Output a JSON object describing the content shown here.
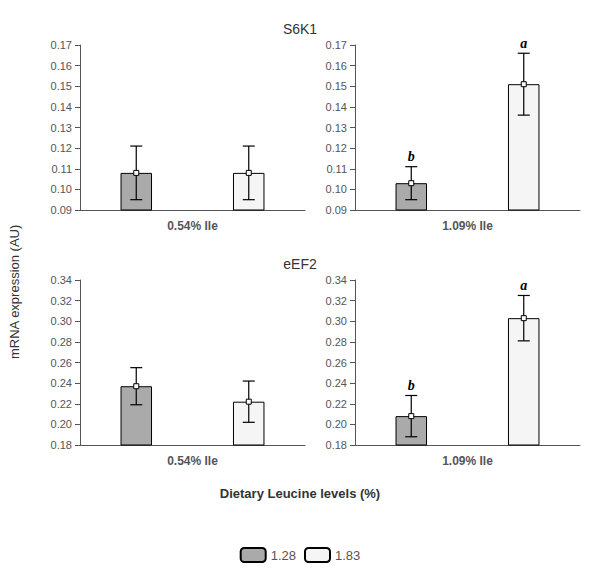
{
  "chart_data": {
    "type": "bar",
    "xlabel": "Dietary Leucine levels (%)",
    "ylabel": "mRNA expression (AU)",
    "legend": "bottom",
    "grid": false,
    "series": [
      {
        "name": "1.28",
        "color": "#aaaaaa"
      },
      {
        "name": "1.83",
        "color": "#f5f5f5"
      }
    ],
    "rows": [
      {
        "title": "S6K1",
        "panels": [
          {
            "categories": [
              "0.54% Ile"
            ],
            "values": [
              0.108,
              0.108
            ],
            "errors": [
              0.013,
              0.013
            ],
            "ylim": [
              0.09,
              0.17
            ],
            "yticks": [
              0.09,
              {
                "value": 0.1,
                "label": "0.10"
              },
              0.11,
              0.12,
              0.13,
              0.14,
              0.15,
              0.16,
              0.17
            ]
          },
          {
            "categories": [
              "1.09% Ile"
            ],
            "values": [
              0.103,
              0.151
            ],
            "errors": [
              0.008,
              0.015
            ],
            "annotations": [
              "b",
              "a"
            ],
            "ylim": [
              0.09,
              0.17
            ],
            "yticks": [
              0.09,
              {
                "value": 0.1,
                "label": "0.10"
              },
              0.11,
              0.12,
              0.13,
              0.14,
              0.15,
              0.16,
              0.17
            ]
          }
        ]
      },
      {
        "title": "eEF2",
        "panels": [
          {
            "categories": [
              "0.54% Ile"
            ],
            "values": [
              0.237,
              0.222
            ],
            "errors": [
              0.018,
              0.02
            ],
            "ylim": [
              0.18,
              0.34
            ],
            "yticks": [
              0.18,
              {
                "value": 0.2,
                "label": "0.20"
              },
              0.22,
              0.24,
              0.26,
              0.28,
              {
                "value": 0.3,
                "label": "0.30"
              },
              0.32,
              0.34
            ]
          },
          {
            "categories": [
              "1.09% Ile"
            ],
            "values": [
              0.208,
              0.303
            ],
            "errors": [
              0.02,
              0.022
            ],
            "annotations": [
              "b",
              "a"
            ],
            "ylim": [
              0.18,
              0.34
            ],
            "yticks": [
              0.18,
              {
                "value": 0.2,
                "label": "0.20"
              },
              0.22,
              0.24,
              0.26,
              0.28,
              {
                "value": 0.3,
                "label": "0.30"
              },
              0.32,
              0.34
            ]
          }
        ]
      }
    ]
  }
}
